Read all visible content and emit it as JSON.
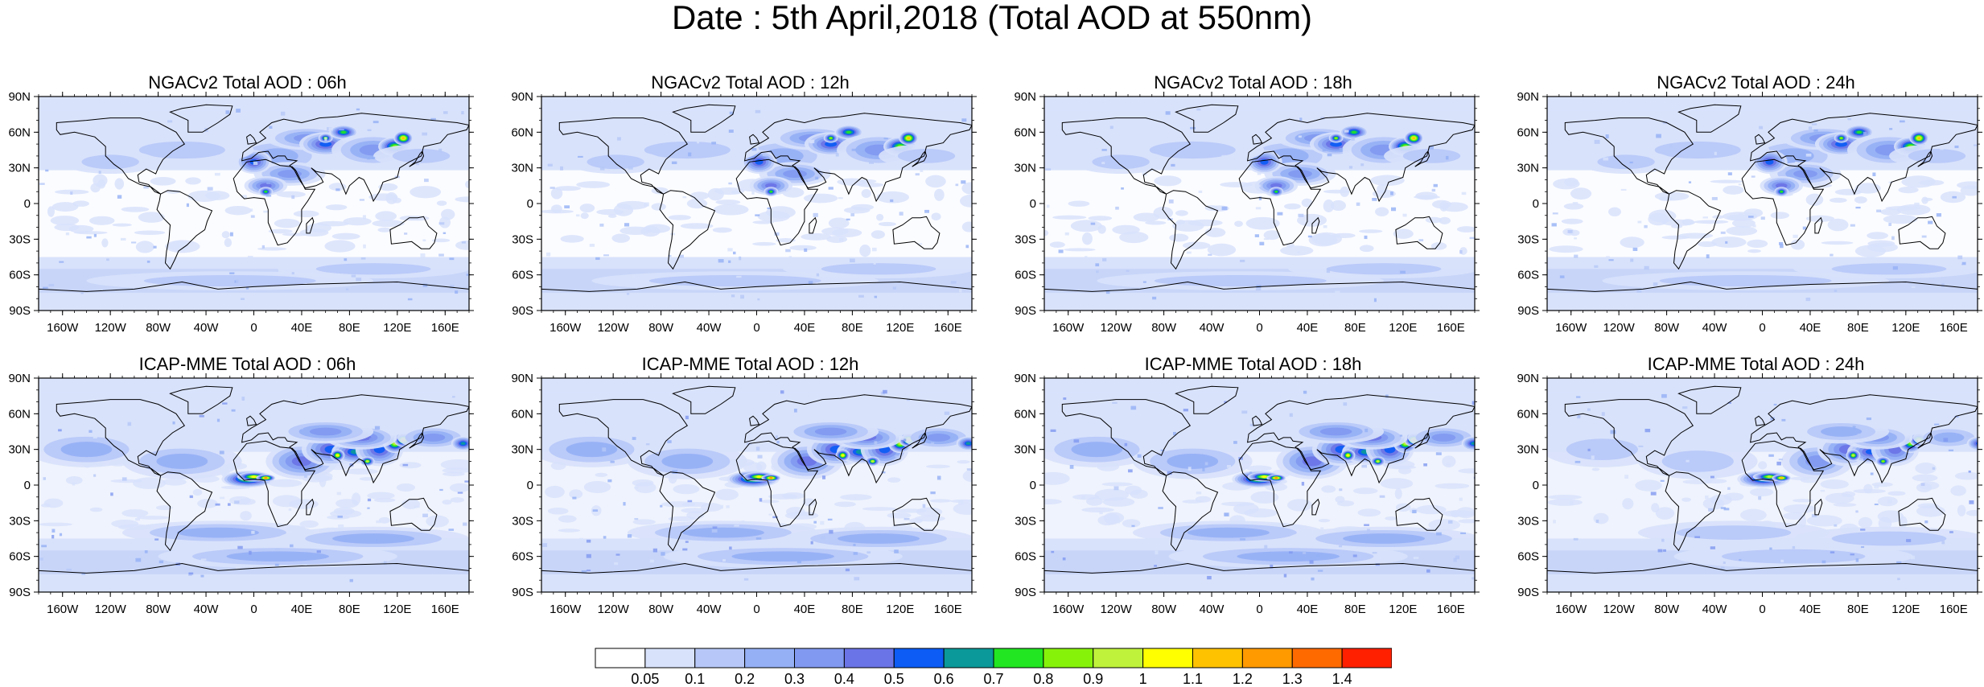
{
  "title": "Date : 5th April,2018 (Total AOD at 550nm)",
  "panels": [
    {
      "title": "NGACv2 Total AOD : 06h",
      "model": "NGACv2",
      "hour": "06h"
    },
    {
      "title": "NGACv2 Total AOD : 12h",
      "model": "NGACv2",
      "hour": "12h"
    },
    {
      "title": "NGACv2 Total AOD : 18h",
      "model": "NGACv2",
      "hour": "18h"
    },
    {
      "title": "NGACv2 Total AOD : 24h",
      "model": "NGACv2",
      "hour": "24h"
    },
    {
      "title": "ICAP-MME Total AOD : 06h",
      "model": "ICAP-MME",
      "hour": "06h"
    },
    {
      "title": "ICAP-MME Total AOD : 12h",
      "model": "ICAP-MME",
      "hour": "12h"
    },
    {
      "title": "ICAP-MME Total AOD : 18h",
      "model": "ICAP-MME",
      "hour": "18h"
    },
    {
      "title": "ICAP-MME Total AOD : 24h",
      "model": "ICAP-MME",
      "hour": "24h"
    }
  ],
  "axes": {
    "lat_labels": [
      "90N",
      "60N",
      "30N",
      "0",
      "30S",
      "60S",
      "90S"
    ],
    "lon_labels": [
      "160W",
      "120W",
      "80W",
      "40W",
      "0",
      "40E",
      "80E",
      "120E",
      "160E"
    ]
  },
  "colorbar": {
    "labels": [
      "0.05",
      "0.1",
      "0.2",
      "0.3",
      "0.4",
      "0.5",
      "0.6",
      "0.7",
      "0.8",
      "0.9",
      "1",
      "1.1",
      "1.2",
      "1.3",
      "1.4"
    ],
    "colors": [
      "#ffffff",
      "#d8e2fb",
      "#b7c8f8",
      "#95b0f5",
      "#8199f0",
      "#6b74e6",
      "#0c5cf5",
      "#0b9999",
      "#22e622",
      "#86f20a",
      "#bff23a",
      "#ffff00",
      "#ffc200",
      "#ff9a00",
      "#ff6a00",
      "#ff2000"
    ]
  },
  "colors": {
    "background_field": "#d8e2fb",
    "coastline": "#000000"
  }
}
